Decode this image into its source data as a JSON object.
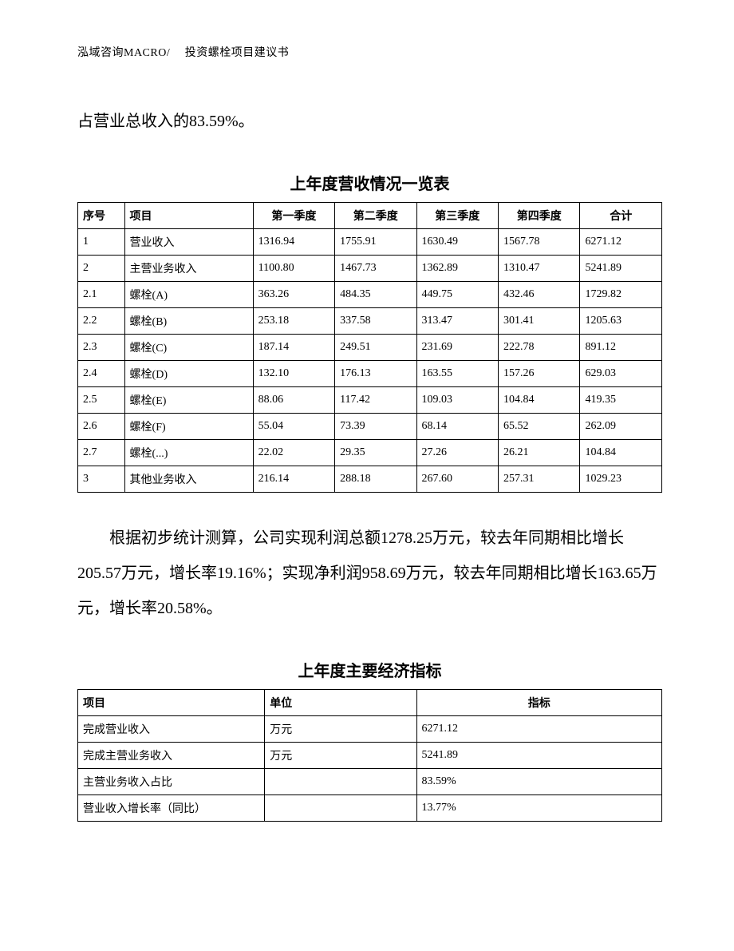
{
  "header": "泓域咨询MACRO/　 投资螺栓项目建议书",
  "para1": "占营业总收入的83.59%。",
  "table1": {
    "title": "上年度营收情况一览表",
    "columns": [
      "序号",
      "项目",
      "第一季度",
      "第二季度",
      "第三季度",
      "第四季度",
      "合计"
    ],
    "header_align": [
      "left",
      "left",
      "center",
      "center",
      "center",
      "center",
      "center"
    ],
    "rows": [
      [
        "1",
        "营业收入",
        "1316.94",
        "1755.91",
        "1630.49",
        "1567.78",
        "6271.12"
      ],
      [
        "2",
        "主营业务收入",
        "1100.80",
        "1467.73",
        "1362.89",
        "1310.47",
        "5241.89"
      ],
      [
        "2.1",
        "螺栓(A)",
        "363.26",
        "484.35",
        "449.75",
        "432.46",
        "1729.82"
      ],
      [
        "2.2",
        "螺栓(B)",
        "253.18",
        "337.58",
        "313.47",
        "301.41",
        "1205.63"
      ],
      [
        "2.3",
        "螺栓(C)",
        "187.14",
        "249.51",
        "231.69",
        "222.78",
        "891.12"
      ],
      [
        "2.4",
        "螺栓(D)",
        "132.10",
        "176.13",
        "163.55",
        "157.26",
        "629.03"
      ],
      [
        "2.5",
        "螺栓(E)",
        "88.06",
        "117.42",
        "109.03",
        "104.84",
        "419.35"
      ],
      [
        "2.6",
        "螺栓(F)",
        "55.04",
        "73.39",
        "68.14",
        "65.52",
        "262.09"
      ],
      [
        "2.7",
        "螺栓(...)",
        "22.02",
        "29.35",
        "27.26",
        "26.21",
        "104.84"
      ],
      [
        "3",
        "其他业务收入",
        "216.14",
        "288.18",
        "267.60",
        "257.31",
        "1029.23"
      ]
    ]
  },
  "para2": "根据初步统计测算，公司实现利润总额1278.25万元，较去年同期相比增长205.57万元，增长率19.16%；实现净利润958.69万元，较去年同期相比增长163.65万元，增长率20.58%。",
  "table2": {
    "title": "上年度主要经济指标",
    "columns": [
      "项目",
      "单位",
      "指标"
    ],
    "header_align": [
      "left",
      "left",
      "center"
    ],
    "rows": [
      [
        "完成营业收入",
        "万元",
        "6271.12"
      ],
      [
        "完成主营业务收入",
        "万元",
        "5241.89"
      ],
      [
        "主营业务收入占比",
        "",
        "83.59%"
      ],
      [
        "营业收入增长率（同比）",
        "",
        "13.77%"
      ]
    ]
  }
}
